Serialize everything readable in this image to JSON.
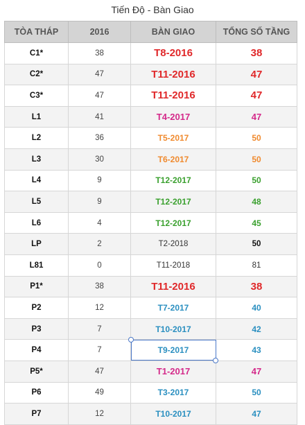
{
  "title": "Tiến Độ - Bàn Giao",
  "headers": [
    "TÒA THÁP",
    "2016",
    "BÀN GIAO",
    "TỔNG SỐ TẦNG"
  ],
  "rows": [
    {
      "tower": "C1*",
      "v2016": "38",
      "handover": "T8-2016",
      "floors": "38",
      "hcolor": "#e0282a",
      "fcolor": "#e0282a",
      "size": "big"
    },
    {
      "tower": "C2*",
      "v2016": "47",
      "handover": "T11-2016",
      "floors": "47",
      "hcolor": "#e0282a",
      "fcolor": "#e0282a",
      "size": "big"
    },
    {
      "tower": "C3*",
      "v2016": "47",
      "handover": "T11-2016",
      "floors": "47",
      "hcolor": "#e0282a",
      "fcolor": "#e0282a",
      "size": "big"
    },
    {
      "tower": "L1",
      "v2016": "41",
      "handover": "T4-2017",
      "floors": "47",
      "hcolor": "#d42a8a",
      "fcolor": "#d42a8a",
      "size": "mid"
    },
    {
      "tower": "L2",
      "v2016": "36",
      "handover": "T5-2017",
      "floors": "50",
      "hcolor": "#f08a2e",
      "fcolor": "#f08a2e",
      "size": "small"
    },
    {
      "tower": "L3",
      "v2016": "30",
      "handover": "T6-2017",
      "floors": "50",
      "hcolor": "#f08a2e",
      "fcolor": "#f08a2e",
      "size": "small"
    },
    {
      "tower": "L4",
      "v2016": "9",
      "handover": "T12-2017",
      "floors": "50",
      "hcolor": "#3aa02e",
      "fcolor": "#3aa02e",
      "size": "small"
    },
    {
      "tower": "L5",
      "v2016": "9",
      "handover": "T12-2017",
      "floors": "48",
      "hcolor": "#3aa02e",
      "fcolor": "#3aa02e",
      "size": "small"
    },
    {
      "tower": "L6",
      "v2016": "4",
      "handover": "T12-2017",
      "floors": "45",
      "hcolor": "#3aa02e",
      "fcolor": "#3aa02e",
      "size": "small"
    },
    {
      "tower": "LP",
      "v2016": "2",
      "handover": "T2-2018",
      "floors": "50",
      "hcolor": "#333333",
      "fcolor": "#111111",
      "size": "plain",
      "fbold": true
    },
    {
      "tower": "L81",
      "v2016": "0",
      "handover": "T11-2018",
      "floors": "81",
      "hcolor": "#333333",
      "fcolor": "#333333",
      "size": "plain"
    },
    {
      "tower": "P1*",
      "v2016": "38",
      "handover": "T11-2016",
      "floors": "38",
      "hcolor": "#e0282a",
      "fcolor": "#e0282a",
      "size": "big"
    },
    {
      "tower": "P2",
      "v2016": "12",
      "handover": "T7-2017",
      "floors": "40",
      "hcolor": "#2a8fc0",
      "fcolor": "#2a8fc0",
      "size": "small"
    },
    {
      "tower": "P3",
      "v2016": "7",
      "handover": "T10-2017",
      "floors": "42",
      "hcolor": "#2a8fc0",
      "fcolor": "#2a8fc0",
      "size": "small"
    },
    {
      "tower": "P4",
      "v2016": "7",
      "handover": "T9-2017",
      "floors": "43",
      "hcolor": "#2a8fc0",
      "fcolor": "#2a8fc0",
      "size": "small",
      "selected": true
    },
    {
      "tower": "P5*",
      "v2016": "47",
      "handover": "T1-2017",
      "floors": "47",
      "hcolor": "#d42a8a",
      "fcolor": "#d42a8a",
      "size": "mid"
    },
    {
      "tower": "P6",
      "v2016": "49",
      "handover": "T3-2017",
      "floors": "50",
      "hcolor": "#2a8fc0",
      "fcolor": "#2a8fc0",
      "size": "small"
    },
    {
      "tower": "P7",
      "v2016": "12",
      "handover": "T10-2017",
      "floors": "47",
      "hcolor": "#2a8fc0",
      "fcolor": "#2a8fc0",
      "size": "small"
    }
  ]
}
